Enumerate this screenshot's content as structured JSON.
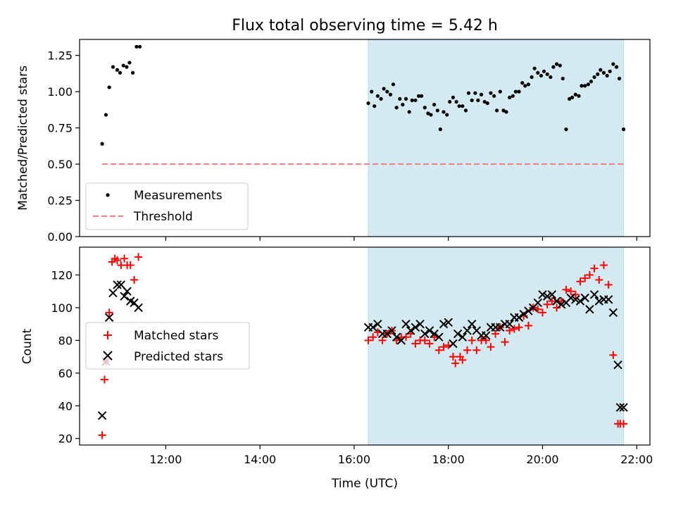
{
  "title": "Flux total observing time = 5.42 h",
  "colors": {
    "band": "#d4eaf1",
    "band_edge": "#b2dde8",
    "threshold": "#f08080",
    "matched": "#ff0000",
    "predicted": "#000000"
  },
  "chart_data": [
    {
      "type": "scatter",
      "panel": "top",
      "title": "Flux total observing time = 5.42 h",
      "xlabel": "",
      "ylabel": "Matched/Predicted stars",
      "xlim": [
        10.17,
        22.28
      ],
      "ylim": [
        0,
        1.36
      ],
      "yticks": [
        0.0,
        0.25,
        0.5,
        0.75,
        1.0,
        1.25
      ],
      "ytick_labels": [
        "0.00",
        "0.25",
        "0.50",
        "0.75",
        "1.00",
        "1.25"
      ],
      "shaded_span": [
        16.3,
        21.72
      ],
      "legend_position": "lower-left",
      "series": [
        {
          "name": "Measurements",
          "marker": "dot",
          "x": [
            10.65,
            10.73,
            10.8,
            10.88,
            10.97,
            11.03,
            11.1,
            11.17,
            11.23,
            11.3,
            11.38,
            11.45,
            16.3,
            16.37,
            16.43,
            16.5,
            16.57,
            16.63,
            16.7,
            16.77,
            16.83,
            16.9,
            16.97,
            17.03,
            17.1,
            17.17,
            17.23,
            17.3,
            17.37,
            17.43,
            17.5,
            17.57,
            17.63,
            17.7,
            17.77,
            17.83,
            17.9,
            17.97,
            18.03,
            18.1,
            18.17,
            18.23,
            18.3,
            18.37,
            18.43,
            18.5,
            18.57,
            18.63,
            18.7,
            18.77,
            18.83,
            18.9,
            18.97,
            19.03,
            19.1,
            19.17,
            19.23,
            19.3,
            19.37,
            19.43,
            19.5,
            19.57,
            19.63,
            19.7,
            19.77,
            19.83,
            19.9,
            19.97,
            20.03,
            20.1,
            20.17,
            20.23,
            20.3,
            20.37,
            20.43,
            20.5,
            20.57,
            20.63,
            20.7,
            20.77,
            20.83,
            20.9,
            20.97,
            21.03,
            21.1,
            21.17,
            21.23,
            21.3,
            21.37,
            21.43,
            21.5,
            21.57,
            21.63,
            21.72
          ],
          "y": [
            0.64,
            0.84,
            1.03,
            1.17,
            1.15,
            1.13,
            1.18,
            1.17,
            1.2,
            1.13,
            1.31,
            1.31,
            0.92,
            1.0,
            0.9,
            0.97,
            0.95,
            1.02,
            1.0,
            0.98,
            1.05,
            0.89,
            0.95,
            0.91,
            0.95,
            0.86,
            0.94,
            0.94,
            0.97,
            0.97,
            0.89,
            0.85,
            0.84,
            0.91,
            0.87,
            0.74,
            0.86,
            0.84,
            0.93,
            0.96,
            0.93,
            0.9,
            0.9,
            0.87,
            0.99,
            0.94,
            0.99,
            0.94,
            0.98,
            0.93,
            0.92,
            0.99,
            0.97,
            0.87,
            1.0,
            0.87,
            0.86,
            0.96,
            0.97,
            1.0,
            1.0,
            1.06,
            1.04,
            1.05,
            1.1,
            1.16,
            1.13,
            1.11,
            1.14,
            1.12,
            1.1,
            1.17,
            1.19,
            1.18,
            1.09,
            0.74,
            0.95,
            0.96,
            0.98,
            0.97,
            1.04,
            1.04,
            1.05,
            1.07,
            1.1,
            1.12,
            1.15,
            1.13,
            1.11,
            1.14,
            1.19,
            1.17,
            1.09,
            0.74
          ]
        },
        {
          "name": "Threshold",
          "style": "dashed",
          "x": [
            10.65,
            21.72
          ],
          "y": [
            0.5,
            0.5
          ]
        }
      ]
    },
    {
      "type": "scatter",
      "panel": "bottom",
      "xlabel": "Time (UTC)",
      "ylabel": "Count",
      "xlim": [
        10.17,
        22.28
      ],
      "ylim": [
        16,
        137
      ],
      "xticks": [
        12,
        14,
        16,
        18,
        20,
        22
      ],
      "xtick_labels": [
        "12:00",
        "14:00",
        "16:00",
        "18:00",
        "20:00",
        "22:00"
      ],
      "yticks": [
        20,
        40,
        60,
        80,
        100,
        120
      ],
      "ytick_labels": [
        "20",
        "40",
        "60",
        "80",
        "100",
        "120"
      ],
      "shaded_span": [
        16.3,
        21.72
      ],
      "legend_position": "center-left",
      "series": [
        {
          "name": "Matched stars",
          "marker": "plus",
          "x": [
            10.65,
            10.7,
            10.73,
            10.8,
            10.86,
            10.92,
            10.97,
            11.05,
            11.12,
            11.18,
            11.25,
            11.33,
            11.42,
            16.3,
            16.4,
            16.5,
            16.6,
            16.7,
            16.8,
            16.9,
            17.0,
            17.1,
            17.2,
            17.3,
            17.4,
            17.5,
            17.6,
            17.7,
            17.8,
            17.9,
            18.0,
            18.1,
            18.15,
            18.25,
            18.3,
            18.4,
            18.5,
            18.6,
            18.7,
            18.8,
            18.9,
            19.0,
            19.1,
            19.2,
            19.3,
            19.4,
            19.5,
            19.6,
            19.7,
            19.8,
            19.9,
            20.0,
            20.1,
            20.2,
            20.3,
            20.4,
            20.5,
            20.6,
            20.7,
            20.8,
            20.9,
            21.0,
            21.1,
            21.2,
            21.3,
            21.4,
            21.5,
            21.6,
            21.65,
            21.72
          ],
          "y": [
            22,
            56,
            67,
            97,
            128,
            130,
            129,
            126,
            130,
            126,
            126,
            117,
            131,
            80,
            82,
            85,
            80,
            84,
            86,
            80,
            82,
            82,
            84,
            78,
            80,
            80,
            78,
            82,
            74,
            76,
            77,
            70,
            66,
            70,
            68,
            74,
            80,
            74,
            80,
            80,
            76,
            84,
            88,
            79,
            86,
            87,
            88,
            95,
            89,
            100,
            99,
            97,
            102,
            104,
            100,
            104,
            111,
            110,
            108,
            116,
            118,
            120,
            124,
            117,
            126,
            114,
            71,
            29,
            29,
            29
          ]
        },
        {
          "name": "Predicted stars",
          "marker": "x",
          "x": [
            10.65,
            10.73,
            10.8,
            10.88,
            10.97,
            11.05,
            11.12,
            11.18,
            11.25,
            11.33,
            11.42,
            16.3,
            16.4,
            16.5,
            16.6,
            16.7,
            16.8,
            16.9,
            17.0,
            17.1,
            17.2,
            17.3,
            17.4,
            17.5,
            17.6,
            17.7,
            17.8,
            17.9,
            18.0,
            18.1,
            18.2,
            18.3,
            18.4,
            18.5,
            18.6,
            18.7,
            18.8,
            18.9,
            19.0,
            19.1,
            19.2,
            19.3,
            19.4,
            19.5,
            19.6,
            19.7,
            19.8,
            19.9,
            20.0,
            20.1,
            20.2,
            20.3,
            20.4,
            20.5,
            20.6,
            20.7,
            20.8,
            20.9,
            21.0,
            21.1,
            21.2,
            21.3,
            21.4,
            21.5,
            21.6,
            21.65,
            21.72
          ],
          "y": [
            34,
            67,
            94,
            109,
            114,
            114,
            107,
            110,
            104,
            103,
            100,
            88,
            88,
            90,
            84,
            84,
            86,
            82,
            80,
            90,
            86,
            88,
            90,
            84,
            86,
            84,
            82,
            90,
            91,
            78,
            84,
            82,
            86,
            90,
            86,
            83,
            83,
            88,
            88,
            88,
            90,
            90,
            94,
            94,
            96,
            98,
            100,
            103,
            108,
            107,
            108,
            104,
            102,
            103,
            106,
            105,
            104,
            106,
            99,
            108,
            104,
            105,
            105,
            97,
            65,
            39,
            39
          ]
        }
      ]
    }
  ]
}
